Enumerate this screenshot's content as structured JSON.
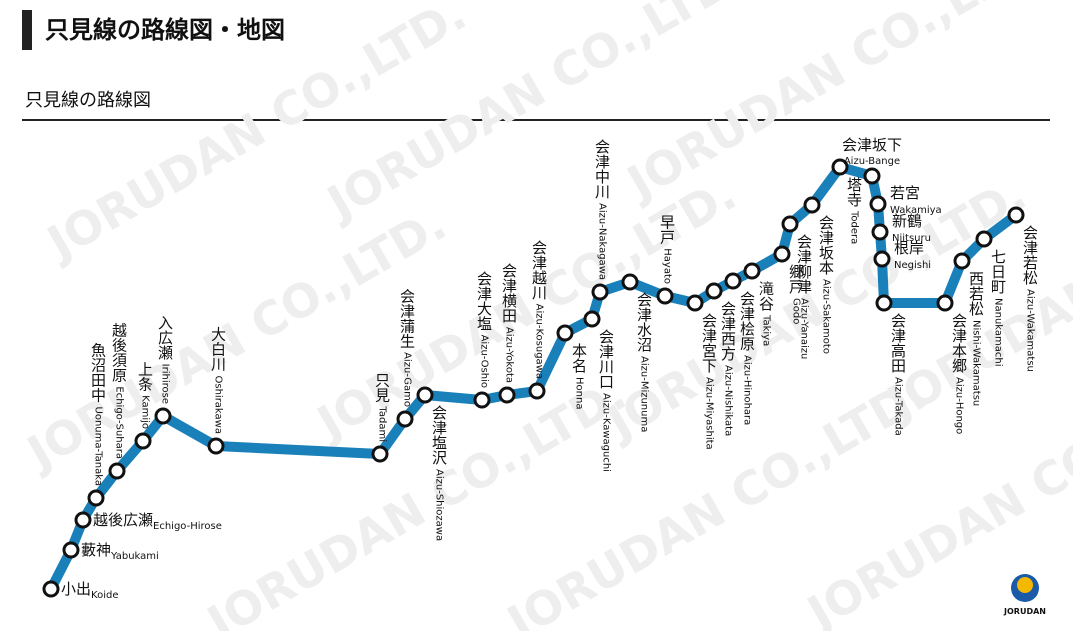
{
  "header": {
    "title": "只見線の路線図・地図"
  },
  "section": {
    "title": "只見線の路線図"
  },
  "watermark": "JORUDAN CO.,LTD.",
  "logo": "JORUDAN",
  "stations": [
    {
      "name": "小出",
      "romaji": "Koide"
    },
    {
      "name": "藪神",
      "romaji": "Yabukami"
    },
    {
      "name": "越後広瀬",
      "romaji": "Echigo-Hirose"
    },
    {
      "name": "魚沼田中",
      "romaji": "Uonuma-Tanaka"
    },
    {
      "name": "越後須原",
      "romaji": "Echigo-Suhara"
    },
    {
      "name": "上条",
      "romaji": "Kamijo"
    },
    {
      "name": "入広瀬",
      "romaji": "Irihirose"
    },
    {
      "name": "大白川",
      "romaji": "Oshirakawa"
    },
    {
      "name": "只見",
      "romaji": "Tadami"
    },
    {
      "name": "会津蒲生",
      "romaji": "Aizu-Gamo"
    },
    {
      "name": "会津塩沢",
      "romaji": "Aizu-Shiozawa"
    },
    {
      "name": "会津大塩",
      "romaji": "Aizu-Oshio"
    },
    {
      "name": "会津横田",
      "romaji": "Aizu-Yokota"
    },
    {
      "name": "会津越川",
      "romaji": "Aizu-Kosugawa"
    },
    {
      "name": "本名",
      "romaji": "Honna"
    },
    {
      "name": "会津川口",
      "romaji": "Aizu-Kawaguchi"
    },
    {
      "name": "会津中川",
      "romaji": "Aizu-Nakagawa"
    },
    {
      "name": "会津水沼",
      "romaji": "Aizu-Mizunuma"
    },
    {
      "name": "早戸",
      "romaji": "Hayato"
    },
    {
      "name": "会津宮下",
      "romaji": "Aizu-Miyashita"
    },
    {
      "name": "会津西方",
      "romaji": "Aizu-Nishikata"
    },
    {
      "name": "会津桧原",
      "romaji": "Aizu-Hinohara"
    },
    {
      "name": "滝谷",
      "romaji": "Takiya"
    },
    {
      "name": "郷戸",
      "romaji": "Godo"
    },
    {
      "name": "会津柳津",
      "romaji": "Aizu-Yanaizu"
    },
    {
      "name": "会津坂本",
      "romaji": "Aizu-Sakamoto"
    },
    {
      "name": "塔寺",
      "romaji": "Todera"
    },
    {
      "name": "会津坂下",
      "romaji": "Aizu-Bange"
    },
    {
      "name": "若宮",
      "romaji": "Wakamiya"
    },
    {
      "name": "新鶴",
      "romaji": "Niitsuru"
    },
    {
      "name": "根岸",
      "romaji": "Negishi"
    },
    {
      "name": "会津高田",
      "romaji": "Aizu-Takada"
    },
    {
      "name": "会津本郷",
      "romaji": "Aizu-Hongo"
    },
    {
      "name": "西若松",
      "romaji": "Nishi-Wakamatsu"
    },
    {
      "name": "七日町",
      "romaji": "Nanukamachi"
    },
    {
      "name": "会津若松",
      "romaji": "Aizu-Wakamatsu"
    }
  ]
}
